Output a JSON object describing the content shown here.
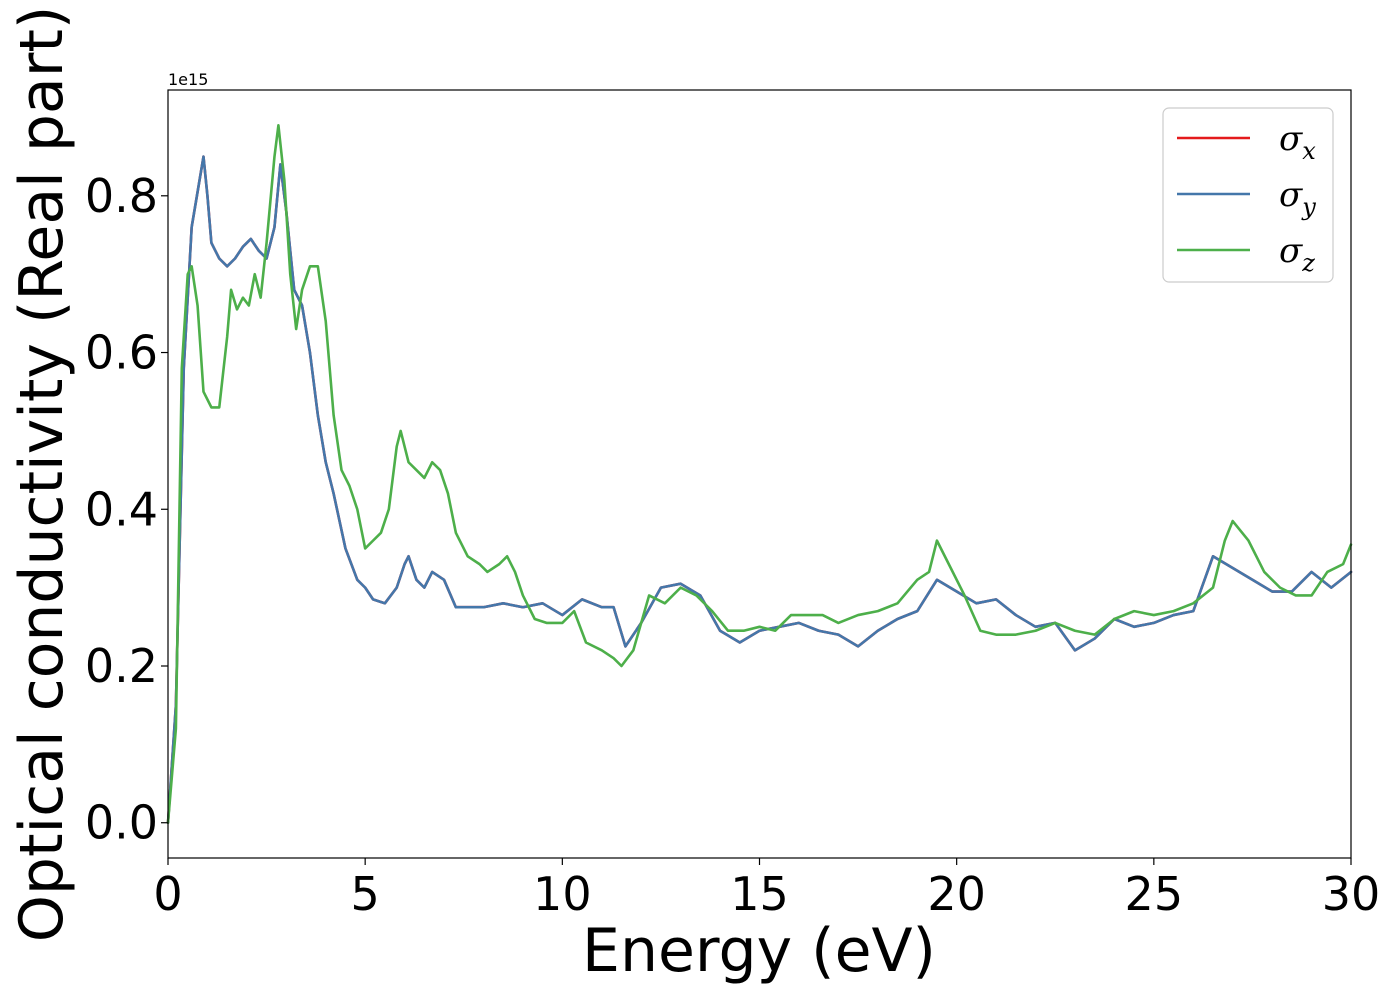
{
  "chart_data": {
    "type": "line",
    "xlabel": "Energy (eV)",
    "ylabel": "Optical conductivity (Real part)",
    "y_offset_label": "1e15",
    "xlim": [
      0,
      30
    ],
    "ylim": [
      -0.045,
      0.935
    ],
    "x_ticks": [
      0,
      5,
      10,
      15,
      20,
      25,
      30
    ],
    "x_tick_labels": [
      "0",
      "5",
      "10",
      "15",
      "20",
      "25",
      "30"
    ],
    "y_ticks": [
      0.0,
      0.2,
      0.4,
      0.6,
      0.8
    ],
    "y_tick_labels": [
      "0.0",
      "0.2",
      "0.4",
      "0.6",
      "0.8"
    ],
    "grid": false,
    "legend_position": "top-right",
    "series": [
      {
        "name": "σ",
        "subscript": "x",
        "color": "#e41a1c",
        "x": [
          0,
          0.2,
          0.4,
          0.6,
          0.8,
          0.9,
          1.0,
          1.1,
          1.2,
          1.3,
          1.5,
          1.7,
          1.9,
          2.1,
          2.3,
          2.5,
          2.7,
          2.85,
          3.0,
          3.2,
          3.4,
          3.6,
          3.8,
          4.0,
          4.2,
          4.5,
          4.8,
          5.0,
          5.2,
          5.5,
          5.8,
          6.0,
          6.1,
          6.3,
          6.5,
          6.7,
          7.0,
          7.3,
          7.6,
          8.0,
          8.5,
          9.0,
          9.5,
          10.0,
          10.5,
          11.0,
          11.3,
          11.6,
          12.0,
          12.5,
          13.0,
          13.5,
          14.0,
          14.5,
          15.0,
          15.5,
          16.0,
          16.5,
          17.0,
          17.5,
          18.0,
          18.5,
          19.0,
          19.5,
          20.0,
          20.5,
          21.0,
          21.5,
          22.0,
          22.5,
          23.0,
          23.5,
          24.0,
          24.5,
          25.0,
          25.5,
          26.0,
          26.5,
          27.0,
          27.5,
          28.0,
          28.5,
          29.0,
          29.5,
          30.0
        ],
        "y": [
          0.0,
          0.15,
          0.58,
          0.76,
          0.82,
          0.85,
          0.8,
          0.74,
          0.73,
          0.72,
          0.71,
          0.72,
          0.735,
          0.745,
          0.73,
          0.72,
          0.76,
          0.84,
          0.78,
          0.68,
          0.66,
          0.6,
          0.52,
          0.46,
          0.42,
          0.35,
          0.31,
          0.3,
          0.285,
          0.28,
          0.3,
          0.33,
          0.34,
          0.31,
          0.3,
          0.32,
          0.31,
          0.275,
          0.275,
          0.275,
          0.28,
          0.275,
          0.28,
          0.265,
          0.285,
          0.275,
          0.275,
          0.225,
          0.255,
          0.3,
          0.305,
          0.29,
          0.245,
          0.23,
          0.245,
          0.25,
          0.255,
          0.245,
          0.24,
          0.225,
          0.245,
          0.26,
          0.27,
          0.31,
          0.295,
          0.28,
          0.285,
          0.265,
          0.25,
          0.255,
          0.22,
          0.235,
          0.26,
          0.25,
          0.255,
          0.265,
          0.27,
          0.34,
          0.325,
          0.31,
          0.295,
          0.295,
          0.32,
          0.3,
          0.32
        ]
      },
      {
        "name": "σ",
        "subscript": "y",
        "color": "#4477aa",
        "x": [
          0,
          0.2,
          0.4,
          0.6,
          0.8,
          0.9,
          1.0,
          1.1,
          1.2,
          1.3,
          1.5,
          1.7,
          1.9,
          2.1,
          2.3,
          2.5,
          2.7,
          2.85,
          3.0,
          3.2,
          3.4,
          3.6,
          3.8,
          4.0,
          4.2,
          4.5,
          4.8,
          5.0,
          5.2,
          5.5,
          5.8,
          6.0,
          6.1,
          6.3,
          6.5,
          6.7,
          7.0,
          7.3,
          7.6,
          8.0,
          8.5,
          9.0,
          9.5,
          10.0,
          10.5,
          11.0,
          11.3,
          11.6,
          12.0,
          12.5,
          13.0,
          13.5,
          14.0,
          14.5,
          15.0,
          15.5,
          16.0,
          16.5,
          17.0,
          17.5,
          18.0,
          18.5,
          19.0,
          19.5,
          20.0,
          20.5,
          21.0,
          21.5,
          22.0,
          22.5,
          23.0,
          23.5,
          24.0,
          24.5,
          25.0,
          25.5,
          26.0,
          26.5,
          27.0,
          27.5,
          28.0,
          28.5,
          29.0,
          29.5,
          30.0
        ],
        "y": [
          0.0,
          0.15,
          0.58,
          0.76,
          0.82,
          0.85,
          0.8,
          0.74,
          0.73,
          0.72,
          0.71,
          0.72,
          0.735,
          0.745,
          0.73,
          0.72,
          0.76,
          0.84,
          0.78,
          0.68,
          0.66,
          0.6,
          0.52,
          0.46,
          0.42,
          0.35,
          0.31,
          0.3,
          0.285,
          0.28,
          0.3,
          0.33,
          0.34,
          0.31,
          0.3,
          0.32,
          0.31,
          0.275,
          0.275,
          0.275,
          0.28,
          0.275,
          0.28,
          0.265,
          0.285,
          0.275,
          0.275,
          0.225,
          0.255,
          0.3,
          0.305,
          0.29,
          0.245,
          0.23,
          0.245,
          0.25,
          0.255,
          0.245,
          0.24,
          0.225,
          0.245,
          0.26,
          0.27,
          0.31,
          0.295,
          0.28,
          0.285,
          0.265,
          0.25,
          0.255,
          0.22,
          0.235,
          0.26,
          0.25,
          0.255,
          0.265,
          0.27,
          0.34,
          0.325,
          0.31,
          0.295,
          0.295,
          0.32,
          0.3,
          0.32
        ]
      },
      {
        "name": "σ",
        "subscript": "z",
        "color": "#4daf4a",
        "x": [
          0,
          0.2,
          0.35,
          0.5,
          0.6,
          0.75,
          0.9,
          1.1,
          1.3,
          1.5,
          1.6,
          1.75,
          1.9,
          2.05,
          2.2,
          2.35,
          2.5,
          2.7,
          2.8,
          2.95,
          3.1,
          3.25,
          3.4,
          3.6,
          3.8,
          4.0,
          4.2,
          4.4,
          4.6,
          4.8,
          5.0,
          5.2,
          5.4,
          5.6,
          5.8,
          5.9,
          6.1,
          6.3,
          6.5,
          6.7,
          6.9,
          7.1,
          7.3,
          7.6,
          7.9,
          8.1,
          8.4,
          8.6,
          8.8,
          9.0,
          9.3,
          9.6,
          10.0,
          10.3,
          10.6,
          11.0,
          11.3,
          11.5,
          11.8,
          12.2,
          12.6,
          13.0,
          13.4,
          13.8,
          14.2,
          14.6,
          15.0,
          15.4,
          15.8,
          16.2,
          16.6,
          17.0,
          17.5,
          18.0,
          18.5,
          19.0,
          19.3,
          19.5,
          19.8,
          20.2,
          20.6,
          21.0,
          21.5,
          22.0,
          22.5,
          23.0,
          23.5,
          24.0,
          24.5,
          25.0,
          25.5,
          26.0,
          26.5,
          26.8,
          27.0,
          27.4,
          27.8,
          28.2,
          28.6,
          29.0,
          29.4,
          29.8,
          30.0
        ],
        "y": [
          0.0,
          0.12,
          0.58,
          0.7,
          0.71,
          0.66,
          0.55,
          0.53,
          0.53,
          0.62,
          0.68,
          0.655,
          0.67,
          0.66,
          0.7,
          0.67,
          0.74,
          0.85,
          0.89,
          0.82,
          0.7,
          0.63,
          0.68,
          0.71,
          0.71,
          0.64,
          0.52,
          0.45,
          0.43,
          0.4,
          0.35,
          0.36,
          0.37,
          0.4,
          0.48,
          0.5,
          0.46,
          0.45,
          0.44,
          0.46,
          0.45,
          0.42,
          0.37,
          0.34,
          0.33,
          0.32,
          0.33,
          0.34,
          0.32,
          0.29,
          0.26,
          0.255,
          0.255,
          0.27,
          0.23,
          0.22,
          0.21,
          0.2,
          0.22,
          0.29,
          0.28,
          0.3,
          0.29,
          0.27,
          0.245,
          0.245,
          0.25,
          0.245,
          0.265,
          0.265,
          0.265,
          0.255,
          0.265,
          0.27,
          0.28,
          0.31,
          0.32,
          0.36,
          0.33,
          0.29,
          0.245,
          0.24,
          0.24,
          0.245,
          0.255,
          0.245,
          0.24,
          0.26,
          0.27,
          0.265,
          0.27,
          0.28,
          0.3,
          0.36,
          0.385,
          0.36,
          0.32,
          0.3,
          0.29,
          0.29,
          0.32,
          0.33,
          0.355
        ]
      }
    ]
  }
}
